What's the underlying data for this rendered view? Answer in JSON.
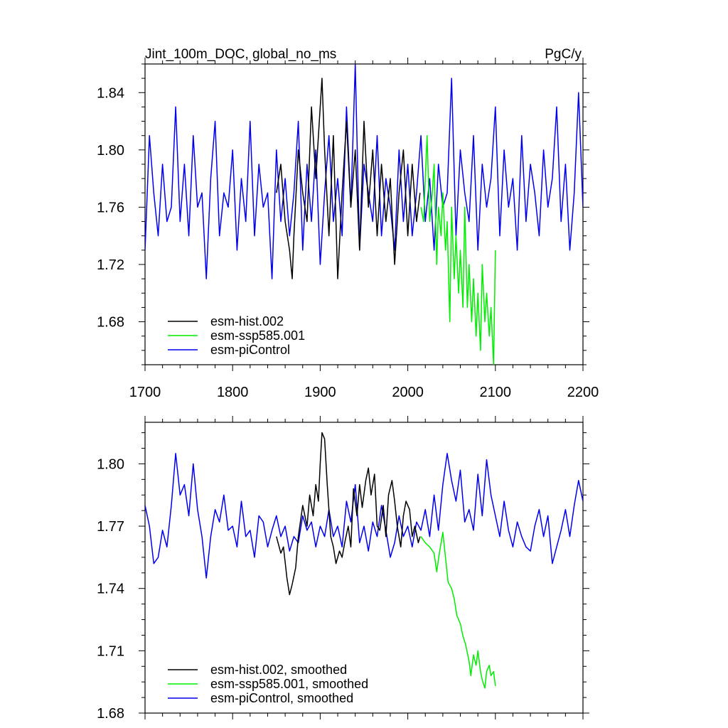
{
  "figure": {
    "title": "Jint_100m_DOC, global_no_ms",
    "units": "PgC/y"
  },
  "chart_data": [
    {
      "type": "line",
      "xlim": [
        1700,
        2200
      ],
      "ylim": [
        1.65,
        1.86
      ],
      "x_ticks": [
        1700,
        1800,
        1900,
        2000,
        2100,
        2200
      ],
      "x_tick_labels": [
        "1700",
        "1800",
        "1900",
        "2000",
        "2100",
        "2200"
      ],
      "y_ticks": [
        1.68,
        1.72,
        1.76,
        1.8,
        1.84
      ],
      "y_tick_labels": [
        "1.68",
        "1.72",
        "1.76",
        "1.80",
        "1.84"
      ],
      "legend_position": "bottom-left",
      "series": [
        {
          "name": "esm-hist.002",
          "color": "#000000",
          "x": [
            1850,
            1855,
            1860,
            1865,
            1868,
            1870,
            1875,
            1880,
            1885,
            1890,
            1895,
            1900,
            1902,
            1905,
            1910,
            1915,
            1920,
            1925,
            1930,
            1935,
            1940,
            1945,
            1950,
            1955,
            1960,
            1965,
            1970,
            1975,
            1980,
            1985,
            1990,
            1995,
            2000,
            2005,
            2010,
            2014
          ],
          "y": [
            1.77,
            1.79,
            1.75,
            1.73,
            1.71,
            1.74,
            1.8,
            1.77,
            1.75,
            1.83,
            1.78,
            1.83,
            1.85,
            1.8,
            1.74,
            1.81,
            1.71,
            1.77,
            1.82,
            1.76,
            1.8,
            1.73,
            1.82,
            1.76,
            1.8,
            1.74,
            1.79,
            1.75,
            1.78,
            1.72,
            1.77,
            1.8,
            1.74,
            1.79,
            1.75,
            1.77
          ]
        },
        {
          "name": "esm-ssp585.001",
          "color": "#00ee00",
          "x": [
            2015,
            2018,
            2020,
            2022,
            2025,
            2028,
            2030,
            2033,
            2035,
            2038,
            2040,
            2043,
            2045,
            2048,
            2050,
            2053,
            2055,
            2058,
            2060,
            2063,
            2065,
            2068,
            2070,
            2073,
            2075,
            2078,
            2080,
            2083,
            2085,
            2088,
            2090,
            2093,
            2095,
            2098,
            2100
          ],
          "y": [
            1.76,
            1.75,
            1.78,
            1.81,
            1.75,
            1.77,
            1.79,
            1.72,
            1.76,
            1.74,
            1.77,
            1.73,
            1.75,
            1.68,
            1.76,
            1.71,
            1.74,
            1.7,
            1.73,
            1.69,
            1.76,
            1.69,
            1.72,
            1.68,
            1.71,
            1.67,
            1.7,
            1.66,
            1.72,
            1.68,
            1.7,
            1.67,
            1.69,
            1.65,
            1.73
          ]
        },
        {
          "name": "esm-piControl",
          "color": "#0000ee",
          "x": [
            1700,
            1705,
            1710,
            1715,
            1720,
            1725,
            1730,
            1735,
            1740,
            1745,
            1750,
            1755,
            1760,
            1765,
            1770,
            1775,
            1780,
            1785,
            1790,
            1795,
            1800,
            1805,
            1810,
            1815,
            1820,
            1825,
            1830,
            1835,
            1840,
            1845,
            1850,
            1855,
            1860,
            1865,
            1870,
            1875,
            1880,
            1885,
            1890,
            1895,
            1900,
            1905,
            1910,
            1915,
            1920,
            1925,
            1930,
            1935,
            1940,
            1945,
            1950,
            1955,
            1960,
            1965,
            1970,
            1975,
            1980,
            1985,
            1990,
            1995,
            2000,
            2005,
            2010,
            2015,
            2020,
            2025,
            2030,
            2035,
            2040,
            2045,
            2050,
            2055,
            2060,
            2065,
            2070,
            2075,
            2080,
            2085,
            2090,
            2095,
            2100,
            2105,
            2110,
            2115,
            2120,
            2125,
            2130,
            2135,
            2140,
            2145,
            2150,
            2155,
            2160,
            2165,
            2170,
            2175,
            2180,
            2185,
            2190,
            2195,
            2200
          ],
          "y": [
            1.73,
            1.81,
            1.77,
            1.74,
            1.79,
            1.75,
            1.76,
            1.83,
            1.75,
            1.79,
            1.74,
            1.81,
            1.76,
            1.77,
            1.71,
            1.78,
            1.82,
            1.74,
            1.77,
            1.76,
            1.8,
            1.73,
            1.78,
            1.75,
            1.82,
            1.74,
            1.79,
            1.76,
            1.77,
            1.71,
            1.8,
            1.75,
            1.78,
            1.74,
            1.77,
            1.82,
            1.73,
            1.79,
            1.75,
            1.8,
            1.72,
            1.77,
            1.81,
            1.75,
            1.78,
            1.74,
            1.83,
            1.76,
            1.86,
            1.73,
            1.79,
            1.77,
            1.75,
            1.81,
            1.74,
            1.78,
            1.76,
            1.73,
            1.8,
            1.75,
            1.79,
            1.74,
            1.77,
            1.81,
            1.75,
            1.78,
            1.73,
            1.79,
            1.76,
            1.77,
            1.85,
            1.74,
            1.8,
            1.77,
            1.75,
            1.81,
            1.73,
            1.79,
            1.76,
            1.78,
            1.83,
            1.74,
            1.8,
            1.76,
            1.78,
            1.73,
            1.81,
            1.75,
            1.79,
            1.77,
            1.74,
            1.8,
            1.76,
            1.78,
            1.83,
            1.75,
            1.79,
            1.73,
            1.77,
            1.84,
            1.76
          ]
        }
      ]
    },
    {
      "type": "line",
      "xlim": [
        1700,
        2200
      ],
      "ylim": [
        1.68,
        1.82
      ],
      "x_ticks": [
        1700,
        1800,
        1900,
        2000,
        2100,
        2200
      ],
      "y_ticks": [
        1.68,
        1.71,
        1.74,
        1.77,
        1.8
      ],
      "y_tick_labels": [
        "1.68",
        "1.71",
        "1.74",
        "1.77",
        "1.80"
      ],
      "legend_position": "bottom-left",
      "series": [
        {
          "name": "esm-hist.002, smoothed",
          "color": "#000000",
          "x": [
            1850,
            1855,
            1858,
            1862,
            1865,
            1868,
            1872,
            1875,
            1880,
            1885,
            1888,
            1892,
            1895,
            1898,
            1900,
            1902,
            1905,
            1908,
            1912,
            1915,
            1918,
            1922,
            1925,
            1928,
            1932,
            1935,
            1938,
            1942,
            1945,
            1948,
            1952,
            1955,
            1958,
            1962,
            1965,
            1968,
            1972,
            1975,
            1978,
            1982,
            1985,
            1988,
            1992,
            1995,
            1998,
            2002,
            2005,
            2008,
            2012,
            2014
          ],
          "y": [
            1.765,
            1.757,
            1.76,
            1.745,
            1.737,
            1.742,
            1.75,
            1.765,
            1.78,
            1.77,
            1.785,
            1.775,
            1.79,
            1.782,
            1.8,
            1.815,
            1.812,
            1.79,
            1.765,
            1.76,
            1.752,
            1.758,
            1.755,
            1.762,
            1.77,
            1.76,
            1.788,
            1.775,
            1.79,
            1.779,
            1.792,
            1.798,
            1.785,
            1.795,
            1.77,
            1.768,
            1.78,
            1.765,
            1.785,
            1.792,
            1.782,
            1.77,
            1.76,
            1.775,
            1.782,
            1.778,
            1.765,
            1.77,
            1.762,
            1.765
          ]
        },
        {
          "name": "esm-ssp585.001, smoothed",
          "color": "#00ee00",
          "x": [
            2015,
            2020,
            2025,
            2030,
            2033,
            2036,
            2040,
            2043,
            2046,
            2050,
            2053,
            2056,
            2060,
            2063,
            2066,
            2070,
            2072,
            2075,
            2078,
            2080,
            2083,
            2085,
            2088,
            2090,
            2093,
            2095,
            2098,
            2100
          ],
          "y": [
            1.765,
            1.762,
            1.76,
            1.757,
            1.748,
            1.757,
            1.767,
            1.755,
            1.743,
            1.74,
            1.735,
            1.727,
            1.723,
            1.717,
            1.713,
            1.705,
            1.698,
            1.708,
            1.703,
            1.71,
            1.7,
            1.696,
            1.692,
            1.7,
            1.703,
            1.698,
            1.7,
            1.693
          ]
        },
        {
          "name": "esm-piControl, smoothed",
          "color": "#0000ee",
          "x": [
            1700,
            1705,
            1710,
            1715,
            1720,
            1725,
            1730,
            1735,
            1740,
            1745,
            1750,
            1755,
            1760,
            1765,
            1770,
            1775,
            1780,
            1785,
            1790,
            1795,
            1800,
            1805,
            1810,
            1815,
            1820,
            1825,
            1830,
            1835,
            1840,
            1845,
            1850,
            1855,
            1860,
            1865,
            1870,
            1875,
            1880,
            1885,
            1890,
            1895,
            1900,
            1905,
            1910,
            1915,
            1920,
            1925,
            1930,
            1935,
            1940,
            1945,
            1950,
            1955,
            1960,
            1965,
            1970,
            1975,
            1980,
            1985,
            1990,
            1995,
            2000,
            2005,
            2010,
            2015,
            2020,
            2025,
            2030,
            2035,
            2040,
            2045,
            2050,
            2055,
            2060,
            2065,
            2070,
            2075,
            2080,
            2085,
            2090,
            2095,
            2100,
            2105,
            2110,
            2115,
            2120,
            2125,
            2130,
            2135,
            2140,
            2145,
            2150,
            2155,
            2160,
            2165,
            2170,
            2175,
            2180,
            2185,
            2190,
            2195,
            2200
          ],
          "y": [
            1.78,
            1.77,
            1.752,
            1.755,
            1.768,
            1.76,
            1.78,
            1.805,
            1.785,
            1.79,
            1.775,
            1.8,
            1.778,
            1.765,
            1.745,
            1.765,
            1.778,
            1.772,
            1.785,
            1.768,
            1.77,
            1.76,
            1.782,
            1.765,
            1.768,
            1.755,
            1.775,
            1.772,
            1.76,
            1.768,
            1.775,
            1.765,
            1.77,
            1.758,
            1.765,
            1.762,
            1.775,
            1.768,
            1.772,
            1.76,
            1.77,
            1.765,
            1.778,
            1.765,
            1.77,
            1.76,
            1.782,
            1.772,
            1.79,
            1.762,
            1.77,
            1.758,
            1.772,
            1.765,
            1.78,
            1.768,
            1.755,
            1.762,
            1.775,
            1.765,
            1.77,
            1.76,
            1.772,
            1.768,
            1.778,
            1.765,
            1.785,
            1.768,
            1.79,
            1.805,
            1.792,
            1.782,
            1.797,
            1.772,
            1.778,
            1.768,
            1.795,
            1.775,
            1.802,
            1.785,
            1.775,
            1.765,
            1.782,
            1.768,
            1.76,
            1.772,
            1.765,
            1.76,
            1.758,
            1.77,
            1.778,
            1.765,
            1.775,
            1.752,
            1.76,
            1.768,
            1.778,
            1.765,
            1.78,
            1.792,
            1.782
          ]
        }
      ]
    }
  ]
}
